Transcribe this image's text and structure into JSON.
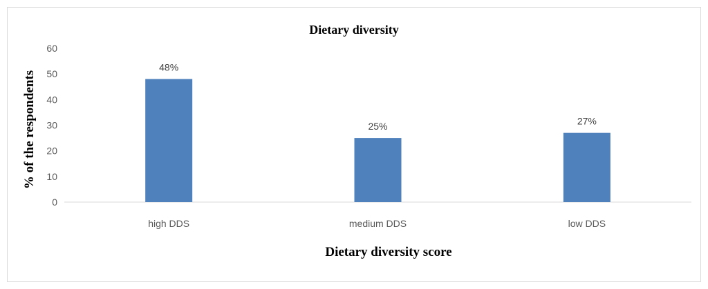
{
  "chart_data": {
    "type": "bar",
    "title": "Dietary diversity",
    "xlabel": "Dietary diversity score",
    "ylabel": "% of the respondents",
    "categories": [
      "high DDS",
      "medium DDS",
      "low DDS"
    ],
    "values": [
      48,
      25,
      27
    ],
    "data_labels": [
      "48%",
      "25%",
      "27%"
    ],
    "ylim": [
      0,
      60
    ],
    "yticks": [
      "0",
      "10",
      "20",
      "30",
      "40",
      "50",
      "60"
    ],
    "bar_color": "#4f81bd",
    "grid": false,
    "legend": "none"
  }
}
